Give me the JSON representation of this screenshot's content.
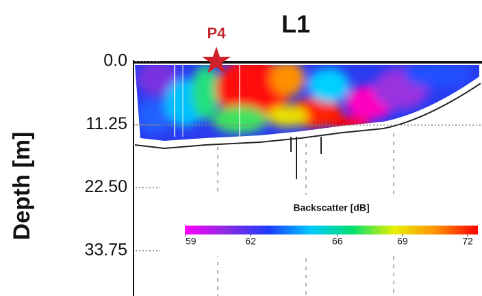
{
  "chart_data": {
    "type": "echogram",
    "title": "L1",
    "annotation": "P4",
    "y_label": "Depth [m]",
    "ylim": [
      0,
      42
    ],
    "yticks": [
      {
        "value": 0,
        "label": "0.0"
      },
      11.25,
      {
        "value": 22.5,
        "label": "22.50"
      },
      33.75
    ],
    "colorbar": {
      "title": "Backscatter [dB]",
      "clim": [
        59,
        72
      ],
      "ticks": [
        59,
        62,
        66,
        69,
        72
      ],
      "colors": [
        "#ff00ff",
        "#8a2be2",
        "#1e3cff",
        "#00c8ff",
        "#00e070",
        "#e8f000",
        "#ff9000",
        "#ff0000"
      ]
    }
  }
}
